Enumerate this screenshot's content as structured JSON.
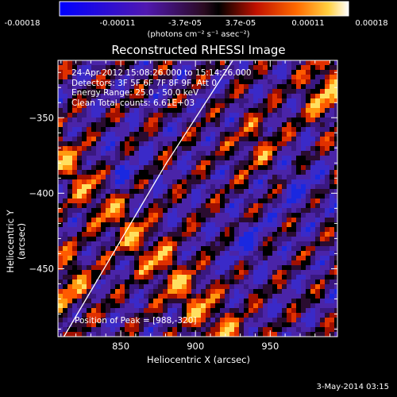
{
  "chart_data": {
    "type": "heatmap",
    "title": "Reconstructed RHESSI Image",
    "xlabel": "Heliocentric X (arcsec)",
    "ylabel": "Heliocentric Y (arcsec)",
    "xlim": [
      808,
      995
    ],
    "ylim": [
      -495,
      -312
    ],
    "x_ticks": [
      "850",
      "900",
      "950"
    ],
    "y_ticks": [
      "-350",
      "-400",
      "-450"
    ],
    "colorbar": {
      "ticks": [
        "-0.00018",
        "-0.00011",
        "-3.7e-05",
        "3.7e-05",
        "0.00011",
        "0.00018"
      ],
      "label": "(photons cm⁻² s⁻¹ asec⁻²)",
      "range": [
        -0.00018,
        0.00018
      ]
    },
    "annotations": {
      "time_range": "24-Apr-2012 15:08:26.000 to 15:14:26.000",
      "detectors": "Detectors: 3F 5F 6F 7F 8F 9F, Att 0",
      "energy": "Energy Range: 25.0 - 50.0 keV",
      "clean": "Clean     Total counts: 6.61E+03",
      "peak": "Position of Peak = [988,-320]"
    },
    "limb_line": [
      [
        812,
        -495
      ],
      [
        880,
        -381
      ],
      [
        925,
        -312
      ]
    ]
  },
  "footer": "3-May-2014 03:15",
  "colors": {
    "background": "#000000",
    "text": "#ffffff"
  }
}
